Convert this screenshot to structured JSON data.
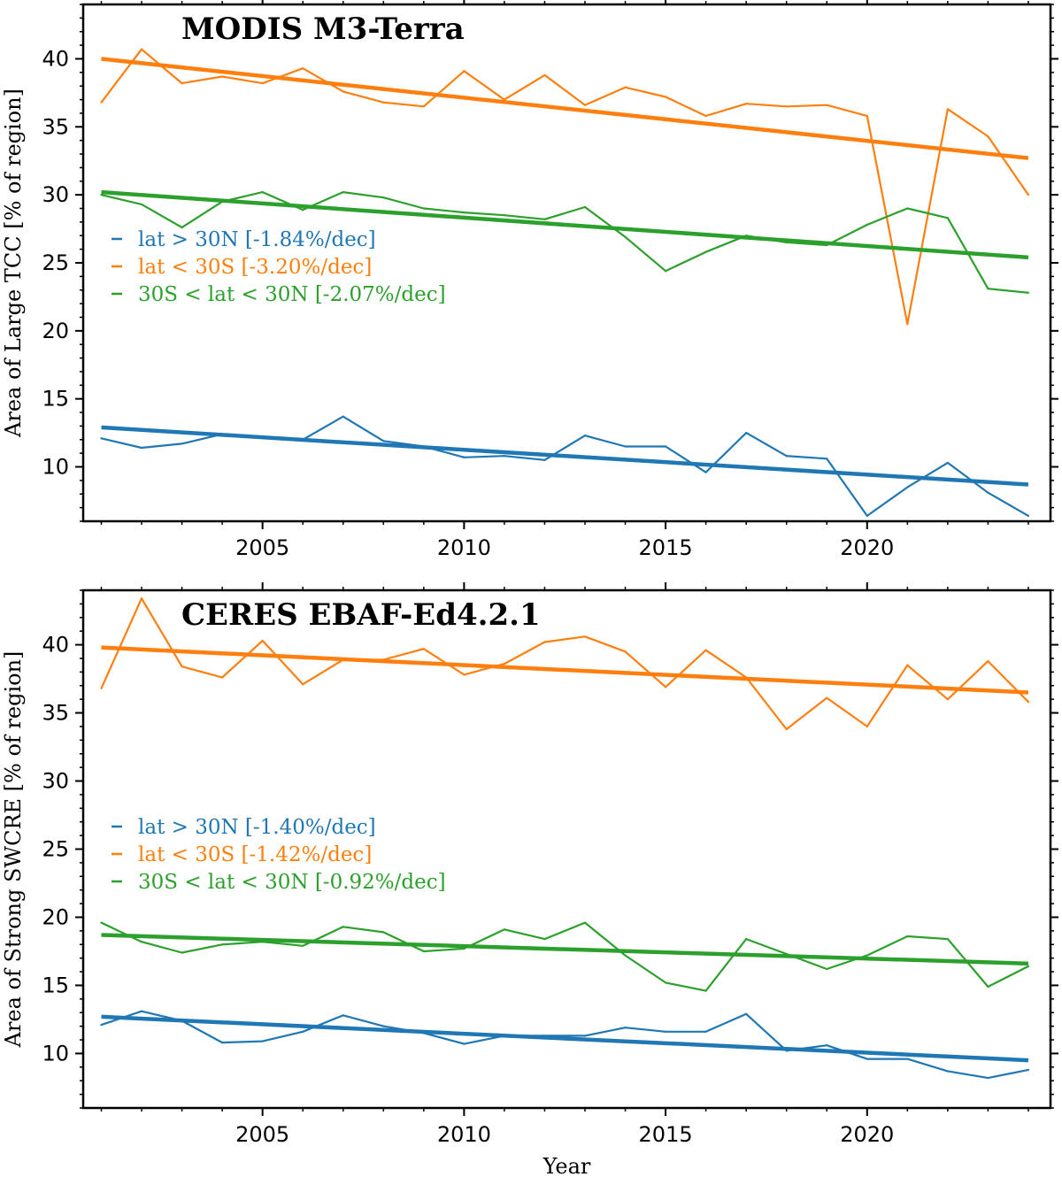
{
  "chart_data": [
    {
      "type": "line",
      "title": "MODIS M3-Terra",
      "xlabel": "",
      "ylabel": "Area of Large TCC [% of region]",
      "xlim": [
        2000.55,
        2024.55
      ],
      "ylim": [
        6,
        44
      ],
      "xticks": [
        2005,
        2010,
        2015,
        2020
      ],
      "yticks": [
        10,
        15,
        20,
        25,
        30,
        35,
        40
      ],
      "x": [
        2001,
        2002,
        2003,
        2004,
        2005,
        2006,
        2007,
        2008,
        2009,
        2010,
        2011,
        2012,
        2013,
        2014,
        2015,
        2016,
        2017,
        2018,
        2019,
        2020,
        2021,
        2022,
        2023,
        2024
      ],
      "series": [
        {
          "name": "lat > 30N",
          "legend": "lat > 30N [-1.84%/dec]",
          "color": "#1f77b4",
          "values": [
            12.1,
            11.4,
            11.7,
            12.4,
            12.2,
            12.0,
            13.7,
            11.9,
            11.5,
            10.7,
            10.8,
            10.5,
            12.3,
            11.5,
            11.5,
            9.6,
            12.5,
            10.8,
            10.6,
            6.4,
            8.5,
            10.3,
            8.1,
            6.4
          ],
          "trend": [
            12.9,
            8.7
          ]
        },
        {
          "name": "lat < 30S",
          "legend": "lat < 30S [-3.20%/dec]",
          "color": "#ff7f0e",
          "values": [
            36.8,
            40.7,
            38.2,
            38.7,
            38.2,
            39.3,
            37.6,
            36.8,
            36.5,
            39.1,
            37.0,
            38.8,
            36.6,
            37.9,
            37.2,
            35.8,
            36.7,
            36.5,
            36.6,
            35.8,
            20.5,
            36.3,
            34.3,
            30.0
          ],
          "trend": [
            40.0,
            32.7
          ]
        },
        {
          "name": "30S < lat < 30N",
          "legend": "30S < lat < 30N [-2.07%/dec]",
          "color": "#2ca02c",
          "values": [
            30.0,
            29.3,
            27.6,
            29.5,
            30.2,
            28.9,
            30.2,
            29.8,
            29.0,
            28.7,
            28.5,
            28.2,
            29.1,
            26.9,
            24.4,
            25.8,
            27.0,
            26.5,
            26.3,
            27.8,
            29.0,
            28.3,
            23.1,
            22.8
          ],
          "trend": [
            30.2,
            25.4
          ]
        }
      ]
    },
    {
      "type": "line",
      "title": "CERES EBAF-Ed4.2.1",
      "xlabel": "Year",
      "ylabel": "Area of Strong SWCRE [% of region]",
      "xlim": [
        2000.55,
        2024.55
      ],
      "ylim": [
        6,
        44
      ],
      "xticks": [
        2005,
        2010,
        2015,
        2020
      ],
      "yticks": [
        10,
        15,
        20,
        25,
        30,
        35,
        40
      ],
      "x": [
        2001,
        2002,
        2003,
        2004,
        2005,
        2006,
        2007,
        2008,
        2009,
        2010,
        2011,
        2012,
        2013,
        2014,
        2015,
        2016,
        2017,
        2018,
        2019,
        2020,
        2021,
        2022,
        2023,
        2024
      ],
      "series": [
        {
          "name": "lat > 30N",
          "legend": "lat > 30N [-1.40%/dec]",
          "color": "#1f77b4",
          "values": [
            12.1,
            13.1,
            12.4,
            10.8,
            10.9,
            11.6,
            12.8,
            12.0,
            11.5,
            10.7,
            11.3,
            11.3,
            11.3,
            11.9,
            11.6,
            11.6,
            12.9,
            10.2,
            10.6,
            9.6,
            9.6,
            8.7,
            8.2,
            8.8
          ],
          "trend": [
            12.7,
            9.5
          ]
        },
        {
          "name": "lat < 30S",
          "legend": "lat < 30S [-1.42%/dec]",
          "color": "#ff7f0e",
          "values": [
            36.8,
            43.4,
            38.4,
            37.6,
            40.3,
            37.1,
            38.9,
            38.9,
            39.7,
            37.8,
            38.6,
            40.2,
            40.6,
            39.5,
            36.9,
            39.6,
            37.6,
            33.8,
            36.1,
            34.0,
            38.5,
            36.0,
            38.8,
            35.8
          ],
          "trend": [
            39.8,
            36.5
          ]
        },
        {
          "name": "30S < lat < 30N",
          "legend": "30S < lat < 30N [-0.92%/dec]",
          "color": "#2ca02c",
          "values": [
            19.6,
            18.2,
            17.4,
            18.0,
            18.2,
            17.9,
            19.3,
            18.9,
            17.5,
            17.7,
            19.1,
            18.4,
            19.6,
            17.2,
            15.2,
            14.6,
            18.4,
            17.3,
            16.2,
            17.2,
            18.6,
            18.4,
            14.9,
            16.4
          ],
          "trend": [
            18.7,
            16.6
          ]
        }
      ]
    }
  ]
}
